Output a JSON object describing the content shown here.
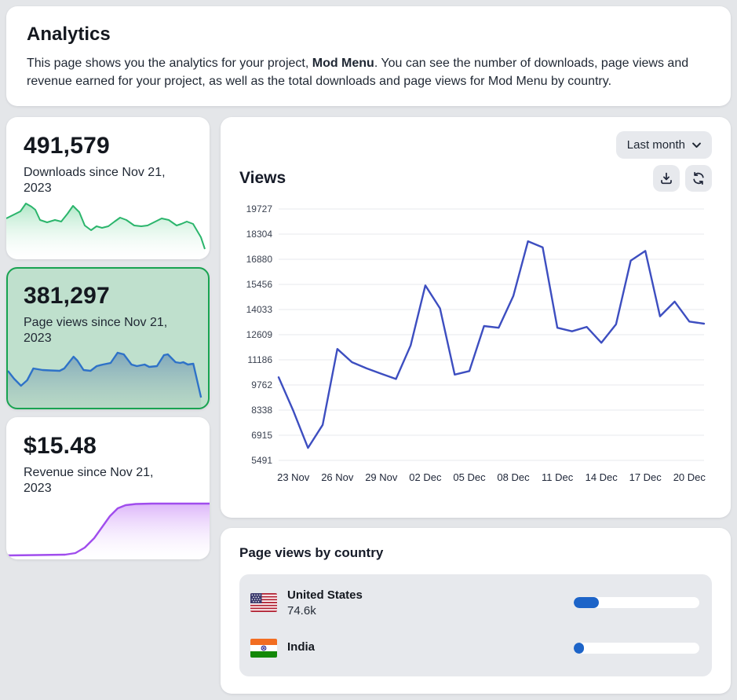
{
  "page": {
    "title": "Analytics",
    "description": {
      "before": "This page shows you the analytics for your project, ",
      "project": "Mod Menu",
      "after": ". You can see the number of downloads, page views and revenue earned for your project, as well as the total downloads and page views for Mod Menu by country."
    }
  },
  "stats": [
    {
      "value": "491,579",
      "label": "Downloads since Nov 21, 2023",
      "selected": false,
      "accent_color": "#2bb56c"
    },
    {
      "value": "381,297",
      "label": "Page views since Nov 21, 2023",
      "selected": true,
      "accent_color": "#2e72c8",
      "selected_border_color": "#18a351",
      "selected_bg_color": "#bfe0cd"
    },
    {
      "value": "$15.48",
      "label": "Revenue since Nov 21, 2023",
      "selected": false,
      "accent_color": "#a04ded"
    }
  ],
  "chart_card": {
    "range_selector": "Last month",
    "title": "Views",
    "toolbar_icons": [
      "download-icon",
      "refresh-icon"
    ]
  },
  "chart_data": {
    "type": "line",
    "title": "Views",
    "x_labels": [
      "23 Nov",
      "26 Nov",
      "29 Nov",
      "02 Dec",
      "05 Dec",
      "08 Dec",
      "11 Dec",
      "14 Dec",
      "17 Dec",
      "20 Dec"
    ],
    "tick_indices": [
      1,
      4,
      7,
      10,
      13,
      16,
      19,
      22,
      25,
      28
    ],
    "y_ticks": [
      5491,
      6915,
      8338,
      9762,
      11186,
      12609,
      14033,
      15456,
      16880,
      18304,
      19727
    ],
    "ylim": [
      5491,
      19727
    ],
    "values": [
      10200,
      8300,
      6200,
      7500,
      11800,
      11050,
      10700,
      10400,
      10100,
      12000,
      15400,
      14100,
      10350,
      10550,
      13100,
      13000,
      14800,
      17900,
      17550,
      13000,
      12800,
      13050,
      12150,
      13200,
      16800,
      17350,
      13650,
      14480,
      13350,
      13230
    ],
    "line_color": "#3d4ec0",
    "grid_color": "#e7e8ec",
    "legend": "none",
    "grid": "horizontal"
  },
  "countries": {
    "title": "Page views by country",
    "bar_color": "#1d64c8",
    "rows": [
      {
        "country": "United States",
        "value": "74.6k",
        "percent": 20,
        "flag": "us-flag"
      },
      {
        "country": "India",
        "value": "",
        "percent": 8,
        "flag": "india-flag"
      }
    ]
  }
}
